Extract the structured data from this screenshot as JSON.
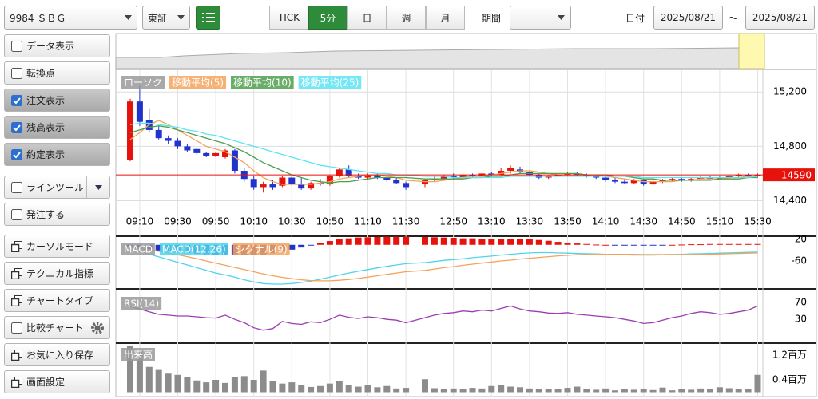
{
  "toolbar": {
    "symbol": "9984 ＳＢＧ",
    "market": "東証",
    "intervals": [
      "TICK",
      "5分",
      "日",
      "週",
      "月"
    ],
    "active_interval": 1,
    "period_label": "期間",
    "date_label": "日付",
    "date_from": "2025/08/21",
    "date_sep": "〜",
    "date_to": "2025/08/21"
  },
  "sidebar": {
    "items": [
      {
        "label": "データ表示",
        "kind": "checkbox",
        "checked": false
      },
      {
        "label": "転換点",
        "kind": "checkbox",
        "checked": false
      },
      {
        "label": "注文表示",
        "kind": "checkbox",
        "checked": true
      },
      {
        "label": "残高表示",
        "kind": "checkbox",
        "checked": true
      },
      {
        "label": "約定表示",
        "kind": "checkbox",
        "checked": true
      },
      {
        "label": "ラインツール",
        "kind": "checkbox",
        "checked": false,
        "extra": "dropdown"
      },
      {
        "label": "発注する",
        "kind": "checkbox",
        "checked": false
      },
      {
        "label": "カーソルモード",
        "kind": "window"
      },
      {
        "label": "テクニカル指標",
        "kind": "window"
      },
      {
        "label": "チャートタイプ",
        "kind": "window"
      },
      {
        "label": "比較チャート",
        "kind": "checkbox",
        "checked": false,
        "extra": "gear"
      },
      {
        "label": "お気に入り保存",
        "kind": "window"
      },
      {
        "label": "画面設定",
        "kind": "window"
      }
    ]
  },
  "chart_data": [
    {
      "type": "candlestick",
      "name": "ローソク",
      "up_color": "#e8120c",
      "down_color": "#2233cc",
      "categories": [
        null,
        "09:10",
        null,
        null,
        null,
        "09:30",
        null,
        null,
        null,
        "09:50",
        null,
        null,
        null,
        "10:10",
        null,
        null,
        null,
        "10:30",
        null,
        null,
        null,
        "10:50",
        null,
        null,
        null,
        "11:10",
        null,
        null,
        null,
        "11:30",
        null,
        null,
        null,
        "12:50",
        null,
        null,
        null,
        "13:10",
        null,
        null,
        null,
        "13:30",
        null,
        null,
        null,
        "13:50",
        null,
        null,
        null,
        "14:10",
        null,
        null,
        null,
        "14:30",
        null,
        null,
        null,
        "14:50",
        null,
        null,
        null,
        "15:10",
        null,
        null,
        null,
        "15:30"
      ],
      "open": [
        14700,
        15130,
        14990,
        14920,
        14860,
        14840,
        14800,
        14780,
        14750,
        14730,
        14720,
        14770,
        14620,
        14560,
        14500,
        14520,
        14510,
        14570,
        14520,
        14490,
        14530,
        14520,
        14580,
        14630,
        14580,
        14570,
        14590,
        14570,
        14550,
        14530,
        14520,
        14550,
        14560,
        14580,
        14570,
        14590,
        14580,
        14600,
        14590,
        14620,
        14630,
        14610,
        14590,
        14570,
        14580,
        14590,
        14600,
        14590,
        14580,
        14570,
        14550,
        14540,
        14530,
        14550,
        14520,
        14540,
        14550,
        14560,
        14550,
        14560,
        14570,
        14560,
        14570,
        14580,
        14590,
        14580
      ],
      "high": [
        15150,
        15250,
        15080,
        14950,
        14880,
        14860,
        14820,
        14790,
        14760,
        14760,
        14780,
        14780,
        14640,
        14580,
        14540,
        14550,
        14580,
        14580,
        14570,
        14540,
        14560,
        14590,
        14640,
        14660,
        14600,
        14600,
        14600,
        14580,
        14570,
        14540,
        14560,
        14580,
        14590,
        14600,
        14600,
        14600,
        14610,
        14610,
        14640,
        14660,
        14650,
        14620,
        14600,
        14590,
        14600,
        14610,
        14610,
        14600,
        14590,
        14580,
        14570,
        14560,
        14560,
        14560,
        14550,
        14560,
        14570,
        14570,
        14570,
        14580,
        14580,
        14580,
        14590,
        14600,
        14600,
        14600
      ],
      "low": [
        14690,
        14950,
        14900,
        14850,
        14820,
        14780,
        14760,
        14740,
        14720,
        14720,
        14710,
        14600,
        14540,
        14480,
        14460,
        14480,
        14500,
        14510,
        14480,
        14480,
        14510,
        14510,
        14570,
        14570,
        14560,
        14550,
        14560,
        14540,
        14520,
        14480,
        14500,
        14540,
        14550,
        14560,
        14560,
        14570,
        14570,
        14580,
        14580,
        14600,
        14600,
        14580,
        14560,
        14560,
        14570,
        14580,
        14580,
        14570,
        14560,
        14540,
        14530,
        14520,
        14520,
        14510,
        14510,
        14530,
        14540,
        14540,
        14540,
        14550,
        14550,
        14550,
        14560,
        14570,
        14570,
        14570
      ],
      "close": [
        15130,
        14980,
        14920,
        14860,
        14840,
        14800,
        14770,
        14750,
        14730,
        14750,
        14770,
        14620,
        14560,
        14500,
        14520,
        14500,
        14570,
        14520,
        14490,
        14530,
        14520,
        14580,
        14630,
        14580,
        14570,
        14590,
        14570,
        14550,
        14530,
        14500,
        14550,
        14560,
        14580,
        14570,
        14590,
        14580,
        14600,
        14590,
        14620,
        14640,
        14610,
        14590,
        14570,
        14580,
        14590,
        14600,
        14590,
        14580,
        14570,
        14550,
        14540,
        14530,
        14550,
        14520,
        14540,
        14550,
        14560,
        14550,
        14560,
        14570,
        14560,
        14570,
        14580,
        14590,
        14580,
        14590
      ],
      "series": [
        {
          "name": "移動平均(5)",
          "color": "#f5a35c",
          "values": [
            14850,
            14900,
            14960,
            14990,
            14960,
            14920,
            14880,
            14840,
            14800,
            14780,
            14760,
            14720,
            14680,
            14620,
            14570,
            14540,
            14520,
            14520,
            14520,
            14520,
            14530,
            14540,
            14560,
            14570,
            14580,
            14590,
            14590,
            14580,
            14570,
            14550,
            14540,
            14540,
            14550,
            14560,
            14570,
            14580,
            14580,
            14590,
            14600,
            14610,
            14620,
            14620,
            14610,
            14600,
            14590,
            14590,
            14590,
            14590,
            14590,
            14580,
            14570,
            14560,
            14550,
            14540,
            14540,
            14540,
            14540,
            14550,
            14550,
            14560,
            14560,
            14560,
            14570,
            14570,
            14580,
            14580
          ]
        },
        {
          "name": "移動平均(10)",
          "color": "#4f9f4f",
          "values": [
            14900,
            14920,
            14940,
            14950,
            14940,
            14920,
            14900,
            14880,
            14860,
            14840,
            14820,
            14790,
            14760,
            14720,
            14680,
            14650,
            14620,
            14590,
            14570,
            14550,
            14540,
            14530,
            14540,
            14540,
            14550,
            14560,
            14570,
            14570,
            14570,
            14570,
            14560,
            14560,
            14560,
            14560,
            14560,
            14570,
            14570,
            14580,
            14580,
            14590,
            14600,
            14600,
            14600,
            14600,
            14600,
            14600,
            14600,
            14590,
            14590,
            14590,
            14580,
            14580,
            14570,
            14560,
            14560,
            14550,
            14550,
            14550,
            14550,
            14550,
            14550,
            14560,
            14560,
            14560,
            14570,
            14570
          ]
        },
        {
          "name": "移動平均(25)",
          "color": "#5ee3f2",
          "values": [
            14960,
            14970,
            14970,
            14960,
            14950,
            14940,
            14920,
            14910,
            14890,
            14880,
            14860,
            14840,
            14820,
            14800,
            14780,
            14760,
            14740,
            14720,
            14700,
            14680,
            14660,
            14650,
            14640,
            14630,
            14620,
            14610,
            14600,
            14600,
            14590,
            14590,
            14580,
            14580,
            14580,
            14570,
            14570,
            14570,
            14570,
            14570,
            14570,
            14580,
            14580,
            14580,
            14580,
            14580,
            14580,
            14580,
            14580,
            14580,
            14580,
            14580,
            14580,
            14580,
            14580,
            14570,
            14570,
            14570,
            14570,
            14570,
            14570,
            14570,
            14570,
            14570,
            14570,
            14570,
            14570,
            14580
          ]
        }
      ],
      "ylim": [
        14350,
        15360
      ],
      "yticks": [
        {
          "value": 14400,
          "label": "14,400"
        },
        {
          "value": 14800,
          "label": "14,800"
        },
        {
          "value": 15200,
          "label": "15,200"
        }
      ],
      "grid": true,
      "last_price": 14590,
      "last_price_color": "#e8120c"
    },
    {
      "type": "macd",
      "name": "MACD",
      "up_color": "#e8120c",
      "down_color": "#2233cc",
      "series": [
        {
          "name": "MACD(12,26)",
          "color": "#4fd5ea",
          "values": [
            -20,
            -25,
            -35,
            -45,
            -55,
            -65,
            -75,
            -85,
            -95,
            -105,
            -112,
            -120,
            -130,
            -138,
            -144,
            -146,
            -146,
            -144,
            -140,
            -135,
            -128,
            -120,
            -112,
            -105,
            -98,
            -92,
            -86,
            -80,
            -75,
            -70,
            -66,
            -62,
            -58,
            -55,
            -52,
            -48,
            -45,
            -42,
            -38,
            -35,
            -32,
            -30,
            -29,
            -29,
            -30,
            -31,
            -32,
            -33,
            -34,
            -35,
            -36,
            -37,
            -38,
            -38,
            -38,
            -37,
            -36,
            -35,
            -34,
            -33,
            -32,
            -31,
            -30,
            -29,
            -28,
            -27
          ]
        },
        {
          "name": "シグナル(9)",
          "color": "#f5a35c",
          "values": [
            -10,
            -14,
            -18,
            -24,
            -30,
            -37,
            -44,
            -52,
            -60,
            -68,
            -76,
            -84,
            -92,
            -100,
            -108,
            -115,
            -121,
            -126,
            -130,
            -133,
            -134,
            -134,
            -132,
            -129,
            -125,
            -120,
            -115,
            -110,
            -105,
            -100,
            -95,
            -90,
            -85,
            -81,
            -76,
            -72,
            -68,
            -64,
            -60,
            -57,
            -53,
            -50,
            -47,
            -44,
            -41,
            -39,
            -37,
            -36,
            -35,
            -35,
            -35,
            -35,
            -35,
            -36,
            -36,
            -36,
            -36,
            -36,
            -36,
            -35,
            -35,
            -34,
            -33,
            -32,
            -31,
            -30
          ]
        }
      ],
      "histogram": [
        -10,
        -11,
        -17,
        -21,
        -25,
        -28,
        -31,
        -33,
        -35,
        -37,
        -36,
        -36,
        -38,
        -38,
        -36,
        -31,
        -25,
        -18,
        -10,
        -2,
        6,
        14,
        20,
        24,
        27,
        28,
        29,
        30,
        30,
        30,
        29,
        28,
        27,
        26,
        24,
        24,
        23,
        22,
        22,
        22,
        21,
        20,
        18,
        15,
        11,
        8,
        5,
        3,
        1,
        0,
        -1,
        -2,
        -3,
        -2,
        -2,
        -1,
        0,
        1,
        2,
        2,
        3,
        3,
        3,
        3,
        3,
        3
      ],
      "ylim": [
        -158,
        29
      ],
      "yticks": [
        -60,
        20
      ]
    },
    {
      "type": "line",
      "name": "RSI(14)",
      "series": [
        {
          "color": "#9b3fb0",
          "values": [
            60,
            55,
            48,
            42,
            40,
            38,
            38,
            36,
            34,
            33,
            40,
            30,
            22,
            10,
            4,
            8,
            25,
            20,
            18,
            24,
            22,
            30,
            40,
            35,
            32,
            36,
            34,
            30,
            28,
            22,
            34,
            40,
            44,
            46,
            50,
            48,
            52,
            50,
            56,
            62,
            55,
            50,
            48,
            45,
            44,
            46,
            42,
            40,
            38,
            36,
            34,
            30,
            26,
            20,
            22,
            28,
            34,
            38,
            44,
            48,
            46,
            42,
            44,
            48,
            52,
            62
          ]
        }
      ],
      "ylim": [
        -23,
        97
      ],
      "yticks": [
        30,
        70
      ]
    },
    {
      "type": "bar",
      "name": "出来高",
      "color": "#8c8c8c",
      "values": [
        1500000,
        1330000,
        820000,
        720000,
        600000,
        560000,
        500000,
        380000,
        320000,
        400000,
        300000,
        480000,
        520000,
        400000,
        700000,
        360000,
        280000,
        320000,
        220000,
        170000,
        200000,
        280000,
        360000,
        220000,
        180000,
        230000,
        160000,
        200000,
        120000,
        140000,
        420000,
        130000,
        100000,
        120000,
        90000,
        140000,
        120000,
        200000,
        220000,
        180000,
        160000,
        120000,
        100000,
        90000,
        110000,
        140000,
        180000,
        90000,
        80000,
        120000,
        60000,
        90000,
        80000,
        100000,
        70000,
        150000,
        60000,
        110000,
        80000,
        120000,
        100000,
        160000,
        130000,
        110000,
        90000,
        560000
      ],
      "ylim": [
        -116000,
        1535000
      ],
      "yticks": [
        {
          "value": 400000,
          "label": "0.4百万"
        },
        {
          "value": 1200000,
          "label": "1.2百万"
        }
      ]
    }
  ]
}
